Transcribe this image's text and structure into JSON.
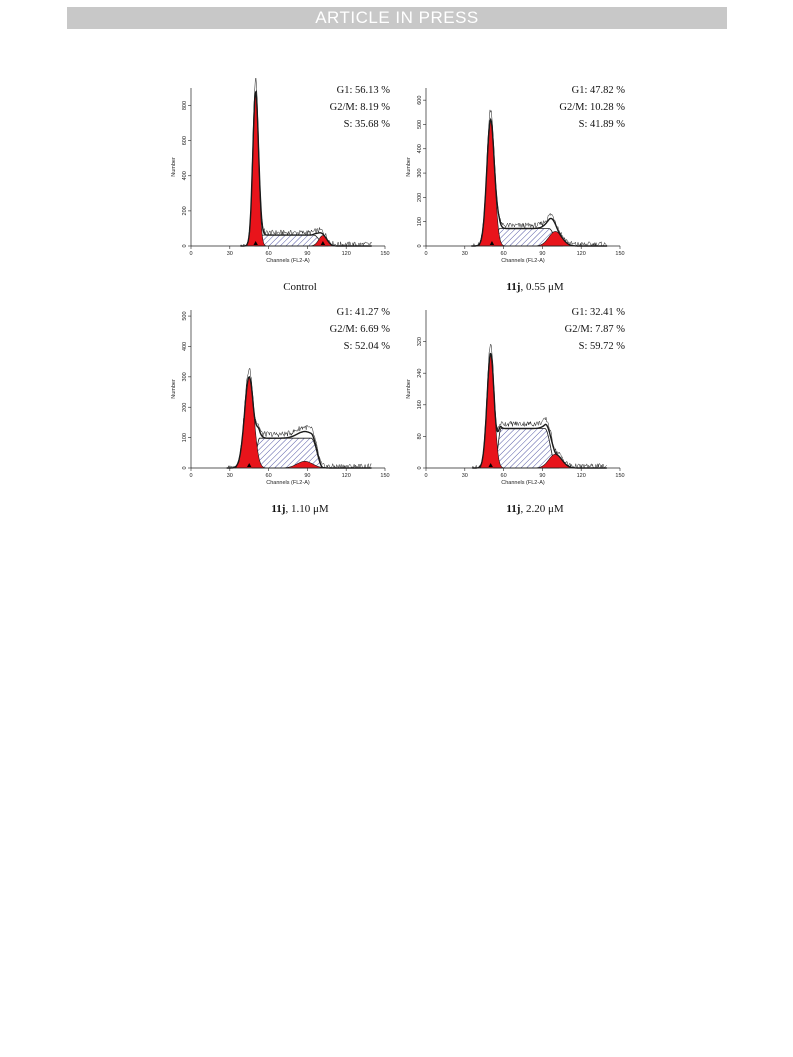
{
  "header": {
    "banner": "ARTICLE IN PRESS"
  },
  "figure": {
    "panels": [
      {
        "stats": [
          "G1: 56.13 %",
          "G2/M: 8.19 %",
          "S: 35.68 %"
        ],
        "caption_compound": "",
        "caption_text": "Control"
      },
      {
        "stats": [
          "G1: 47.82 %",
          "G2/M: 10.28 %",
          "S: 41.89 %"
        ],
        "caption_compound": "11j",
        "caption_text": ", 0.55 μM"
      },
      {
        "stats": [
          "G1: 41.27 %",
          "G2/M: 6.69 %",
          "S: 52.04 %"
        ],
        "caption_compound": "11j",
        "caption_text": ", 1.10 μM"
      },
      {
        "stats": [
          "G1: 32.41 %",
          "G2/M: 7.87 %",
          "S: 59.72 %"
        ],
        "caption_compound": "11j",
        "caption_text": ", 2.20 μM"
      }
    ]
  },
  "colors": {
    "g1": "#e8141b",
    "s_hatch": "#2b2f8f",
    "line": "#1a1a1a"
  },
  "chart_data": [
    {
      "type": "area",
      "xlabel": "Channels (FL2-A)",
      "ylabel": "Number",
      "xlim": [
        0,
        150
      ],
      "ylim": [
        0,
        900
      ],
      "xticks": [
        "0",
        "30",
        "60",
        "90",
        "120",
        "150"
      ],
      "yticks": [
        "0",
        "200",
        "400",
        "600",
        "800"
      ],
      "ytick_values": [
        0,
        200,
        400,
        600,
        800
      ],
      "g1": {
        "peak_channel": 50,
        "height": 880,
        "sigma": 2.2
      },
      "g2": {
        "peak_channel": 102,
        "height": 60,
        "sigma": 3.2
      },
      "s_phase": {
        "from": 52,
        "to": 100,
        "level": 62
      },
      "markers": [
        50,
        102
      ]
    },
    {
      "type": "area",
      "xlabel": "Channels (FL2-A)",
      "ylabel": "Number",
      "xlim": [
        0,
        150
      ],
      "ylim": [
        0,
        650
      ],
      "xticks": [
        "0",
        "30",
        "60",
        "90",
        "120",
        "150"
      ],
      "yticks": [
        "0",
        "100",
        "200",
        "300",
        "400",
        "500",
        "600"
      ],
      "ytick_values": [
        0,
        100,
        200,
        300,
        400,
        500,
        600
      ],
      "g1": {
        "peak_channel": 50,
        "height": 520,
        "sigma": 3.0
      },
      "g2": {
        "peak_channel": 100,
        "height": 60,
        "sigma": 5.0
      },
      "s_phase": {
        "from": 54,
        "to": 100,
        "level": 72
      },
      "markers": [
        51
      ]
    },
    {
      "type": "area",
      "xlabel": "Channels (FL2-A)",
      "ylabel": "Number",
      "xlim": [
        0,
        150
      ],
      "ylim": [
        0,
        520
      ],
      "xticks": [
        "0",
        "30",
        "60",
        "90",
        "120",
        "150"
      ],
      "yticks": [
        "0",
        "100",
        "200",
        "300",
        "400",
        "500"
      ],
      "ytick_values": [
        0,
        100,
        200,
        300,
        400,
        500
      ],
      "g1": {
        "peak_channel": 45,
        "height": 300,
        "sigma": 3.6
      },
      "g2": {
        "peak_channel": 88,
        "height": 22,
        "sigma": 6.0
      },
      "s_phase": {
        "from": 50,
        "to": 98,
        "level": 98
      },
      "markers": [
        45
      ]
    },
    {
      "type": "area",
      "xlabel": "Channels (FL2-A)",
      "ylabel": "Number",
      "xlim": [
        0,
        150
      ],
      "ylim": [
        0,
        400
      ],
      "xticks": [
        "0",
        "30",
        "60",
        "90",
        "120",
        "150"
      ],
      "yticks": [
        "0",
        "80",
        "160",
        "240",
        "320"
      ],
      "ytick_values": [
        0,
        80,
        160,
        240,
        320
      ],
      "g1": {
        "peak_channel": 50,
        "height": 290,
        "sigma": 2.8
      },
      "g2": {
        "peak_channel": 100,
        "height": 35,
        "sigma": 5.0
      },
      "s_phase": {
        "from": 55,
        "to": 97,
        "level": 100
      },
      "markers": [
        50
      ]
    }
  ]
}
